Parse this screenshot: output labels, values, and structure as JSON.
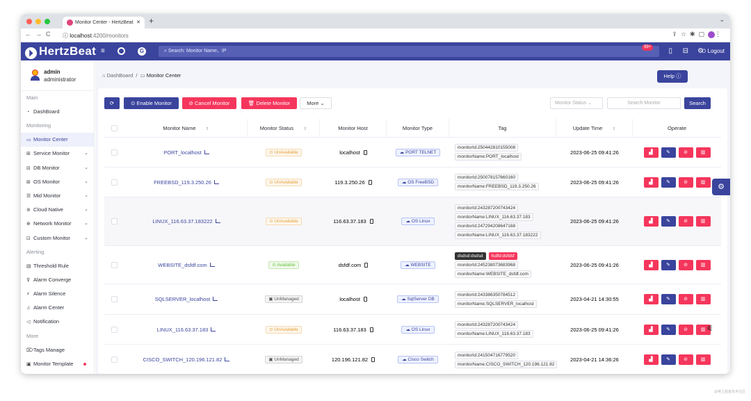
{
  "browser": {
    "tab_title": "Monitor Center - HertzBeat",
    "url_host": "localhost",
    "url_path": ":4200/monitors"
  },
  "header": {
    "logo": "HertzBeat",
    "search_placeholder": "Search: Monitor Name、IP",
    "badge": "99+",
    "logout": "Logout"
  },
  "user": {
    "name": "admin",
    "role": "administrator"
  },
  "sidebar": {
    "main_label": "Main",
    "dashboard": "DashBoard",
    "monitoring_label": "Monitoring",
    "items": [
      {
        "label": "Monitor Center",
        "icon": "monitor-icon",
        "caret": false
      },
      {
        "label": "Service Monitor",
        "icon": "service-icon",
        "caret": true
      },
      {
        "label": "DB Monitor",
        "icon": "db-icon",
        "caret": true
      },
      {
        "label": "OS Monitor",
        "icon": "os-icon",
        "caret": true
      },
      {
        "label": "Mid Monitor",
        "icon": "mid-icon",
        "caret": true
      },
      {
        "label": "Cloud Native",
        "icon": "cloud-icon",
        "caret": true
      },
      {
        "label": "Network Monitor",
        "icon": "network-icon",
        "caret": true
      },
      {
        "label": "Custom Monitor",
        "icon": "custom-icon",
        "caret": true
      }
    ],
    "alerting_label": "Alerting",
    "alert_items": [
      "Threshold Rule",
      "Alarm Converge",
      "Alarm Silence",
      "Alarm Center",
      "Notification"
    ],
    "more_label": "More",
    "more_items": [
      "Tags Manage",
      "Monitor Template"
    ]
  },
  "breadcrumb": {
    "home": "DashBoard",
    "sep": "/",
    "current": "Monitor Center"
  },
  "help_label": "Help ⓘ",
  "toolbar": {
    "enable": "Enable Monitor",
    "cancel": "Cancel Monitor",
    "delete": "Delete Monitor",
    "more": "More ⌄",
    "status_placeholder": "Monitor Status ⌄",
    "search_placeholder": "Search Monitor",
    "search": "Search"
  },
  "columns": [
    "Monitor Name",
    "Monitor Status",
    "Monitor Host",
    "Monitor Type",
    "Tag",
    "Update Time",
    "Operate"
  ],
  "rows": [
    {
      "name": "PORT_localhost",
      "status": "UnAvailable",
      "st": "u",
      "host": "localhost",
      "type": "PORT TELNET",
      "tags": [
        "monitorId:250442810155008",
        "monitorName:PORT_localhost"
      ],
      "time": "2023-06-25 09:41:26"
    },
    {
      "name": "FREEBSD_119.3.250.26",
      "status": "UnAvailable",
      "st": "u",
      "host": "119.3.250.26",
      "type": "OS FreeBSD",
      "tags": [
        "monitorId:250078157660160",
        "monitorName:FREEBSD_119.3.250.26"
      ],
      "time": "2023-06-25 09:41:26"
    },
    {
      "name": "LINUX_116.63.37.183222",
      "status": "UnAvailable",
      "st": "u",
      "host": "116.63.37.183",
      "type": "OS Linux",
      "tags": [
        "monitorId:243287200743424",
        "monitorName:LINUX_116.63.37.183",
        "monitorId:247294208647168",
        "monitorName:LINUX_116.63.37.183222"
      ],
      "time": "2023-06-25 09:41:26"
    },
    {
      "name": "WEBSITE_dsfdf.com",
      "status": "Available",
      "st": "a",
      "host": "dsfdf.com",
      "type": "WEBSITE",
      "dark_tag": "dsdsd:dsdsd",
      "pink_tag": "fsdfd:dsfdsf",
      "tags": [
        "monitorId:245238073683968",
        "monitorName:WEBSITE_dsfdf.com"
      ],
      "time": "2023-06-25 09:41:26"
    },
    {
      "name": "SQLSERVER_localhost",
      "status": "UnManaged",
      "st": "m",
      "host": "localhost",
      "type": "SqlServer DB",
      "tags": [
        "monitorId:243386350784512",
        "monitorName:SQLSERVER_localhost"
      ],
      "time": "2023-04-21 14:30:55"
    },
    {
      "name": "LINUX_116.63.37.183",
      "status": "UnAvailable",
      "st": "u",
      "host": "116.63.37.183",
      "type": "OS Linux",
      "tags": [
        "monitorId:243287200743424",
        "monitorName:LINUX_116.63.37.183"
      ],
      "time": "2023-06-25 09:41:26"
    },
    {
      "name": "CISCO_SWITCH_120.196.121.82",
      "status": "UnManaged",
      "st": "m",
      "host": "120.196.121.82",
      "type": "Cisco Switch",
      "tags": [
        "monitorId:241504716779520",
        "monitorName:CISCO_SWITCH_120.196.121.82"
      ],
      "time": "2023-04-21 14:36:26"
    }
  ],
  "watermark": "@稀土掘金技术社区"
}
